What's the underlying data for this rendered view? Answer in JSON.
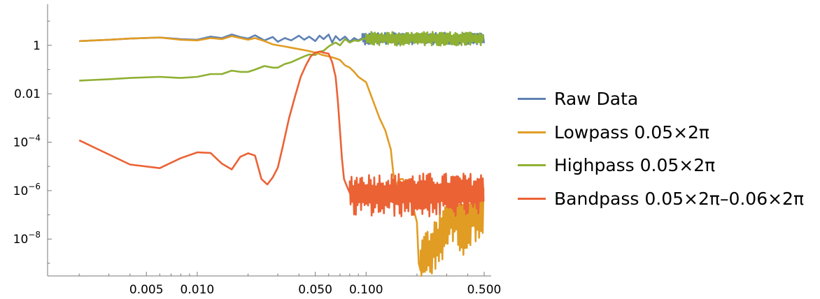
{
  "chart_data": {
    "type": "line",
    "title": "",
    "xlabel": "",
    "ylabel": "",
    "x_scale": "log",
    "y_scale": "log",
    "xlim": [
      0.0013,
      0.55
    ],
    "ylim": [
      3e-10,
      50
    ],
    "x_ticks": [
      0.005,
      0.01,
      0.05,
      0.1,
      0.5
    ],
    "x_tick_labels": [
      "0.005",
      "0.010",
      "0.050",
      "0.100",
      "0.500"
    ],
    "y_ticks": [
      1,
      0.01,
      0.0001,
      1e-06,
      1e-08
    ],
    "y_tick_labels": [
      {
        "base": "1",
        "exp": ""
      },
      {
        "base": "0.01",
        "exp": ""
      },
      {
        "base": "10",
        "exp": "−4"
      },
      {
        "base": "10",
        "exp": "−6"
      },
      {
        "base": "10",
        "exp": "−8"
      }
    ],
    "legend_position": "right",
    "series": [
      {
        "name": "Raw Data",
        "color": "#5e81b5",
        "noisy_tail": true,
        "noise_start": 0.095,
        "noise_amp": 0.3,
        "points": [
          [
            0.002,
            1.5
          ],
          [
            0.003,
            1.7
          ],
          [
            0.004,
            1.9
          ],
          [
            0.006,
            2.1
          ],
          [
            0.008,
            1.8
          ],
          [
            0.01,
            1.7
          ],
          [
            0.012,
            2.3
          ],
          [
            0.014,
            2.0
          ],
          [
            0.016,
            2.8
          ],
          [
            0.018,
            2.2
          ],
          [
            0.02,
            1.9
          ],
          [
            0.022,
            2.6
          ],
          [
            0.025,
            1.6
          ],
          [
            0.028,
            2.2
          ],
          [
            0.03,
            1.4
          ],
          [
            0.033,
            2.0
          ],
          [
            0.036,
            1.6
          ],
          [
            0.04,
            2.5
          ],
          [
            0.043,
            1.7
          ],
          [
            0.046,
            2.3
          ],
          [
            0.05,
            1.5
          ],
          [
            0.053,
            2.5
          ],
          [
            0.056,
            1.8
          ],
          [
            0.06,
            2.8
          ],
          [
            0.063,
            1.3
          ],
          [
            0.066,
            2.4
          ],
          [
            0.07,
            1.6
          ],
          [
            0.075,
            2.3
          ],
          [
            0.08,
            1.4
          ],
          [
            0.085,
            2.0
          ],
          [
            0.09,
            1.6
          ],
          [
            0.095,
            2.0
          ]
        ]
      },
      {
        "name": "Lowpass 0.05×2π",
        "color": "#e19c24",
        "noisy_tail": true,
        "noise_start": 0.21,
        "noise_amp": 1.3,
        "points": [
          [
            0.002,
            1.5
          ],
          [
            0.003,
            1.7
          ],
          [
            0.004,
            1.9
          ],
          [
            0.006,
            2.1
          ],
          [
            0.008,
            1.7
          ],
          [
            0.01,
            1.6
          ],
          [
            0.012,
            2.0
          ],
          [
            0.014,
            1.8
          ],
          [
            0.016,
            2.4
          ],
          [
            0.018,
            2.0
          ],
          [
            0.02,
            1.7
          ],
          [
            0.022,
            2.0
          ],
          [
            0.025,
            1.5
          ],
          [
            0.028,
            1.1
          ],
          [
            0.03,
            1.0
          ],
          [
            0.033,
            0.9
          ],
          [
            0.036,
            0.8
          ],
          [
            0.04,
            0.7
          ],
          [
            0.045,
            0.6
          ],
          [
            0.05,
            0.5
          ],
          [
            0.055,
            0.4
          ],
          [
            0.06,
            0.35
          ],
          [
            0.065,
            0.3
          ],
          [
            0.07,
            0.25
          ],
          [
            0.075,
            0.15
          ],
          [
            0.08,
            0.12
          ],
          [
            0.085,
            0.08
          ],
          [
            0.09,
            0.05
          ],
          [
            0.1,
            0.03
          ],
          [
            0.11,
            0.005
          ],
          [
            0.12,
            0.001
          ],
          [
            0.13,
            0.0003
          ],
          [
            0.14,
            5e-05
          ],
          [
            0.145,
            5e-06
          ],
          [
            0.15,
            1.5e-06
          ],
          [
            0.155,
            2.5e-06
          ],
          [
            0.16,
            3e-06
          ],
          [
            0.165,
            3e-06
          ],
          [
            0.17,
            2e-06
          ],
          [
            0.18,
            5e-07
          ],
          [
            0.19,
            2e-07
          ],
          [
            0.2,
            5e-08
          ],
          [
            0.205,
            1e-09
          ],
          [
            0.21,
            5e-10
          ],
          [
            0.22,
            5e-09
          ],
          [
            0.24,
            3e-09
          ],
          [
            0.27,
            1e-08
          ],
          [
            0.3,
            5e-08
          ],
          [
            0.33,
            1e-07
          ],
          [
            0.38,
            3e-08
          ],
          [
            0.43,
            1e-07
          ],
          [
            0.5,
            2e-07
          ]
        ]
      },
      {
        "name": "Highpass 0.05×2π",
        "color": "#8fb032",
        "noisy_tail": true,
        "noise_start": 0.1,
        "noise_amp": 0.35,
        "points": [
          [
            0.002,
            0.035
          ],
          [
            0.003,
            0.04
          ],
          [
            0.004,
            0.045
          ],
          [
            0.006,
            0.05
          ],
          [
            0.008,
            0.045
          ],
          [
            0.01,
            0.05
          ],
          [
            0.012,
            0.065
          ],
          [
            0.014,
            0.065
          ],
          [
            0.016,
            0.09
          ],
          [
            0.018,
            0.08
          ],
          [
            0.02,
            0.08
          ],
          [
            0.022,
            0.1
          ],
          [
            0.025,
            0.14
          ],
          [
            0.028,
            0.12
          ],
          [
            0.03,
            0.12
          ],
          [
            0.033,
            0.17
          ],
          [
            0.036,
            0.2
          ],
          [
            0.04,
            0.28
          ],
          [
            0.043,
            0.35
          ],
          [
            0.046,
            0.42
          ],
          [
            0.05,
            0.4
          ],
          [
            0.053,
            0.55
          ],
          [
            0.056,
            0.6
          ],
          [
            0.06,
            0.9
          ],
          [
            0.063,
            1.1
          ],
          [
            0.066,
            1.3
          ],
          [
            0.07,
            1.0
          ],
          [
            0.075,
            1.8
          ],
          [
            0.08,
            1.3
          ],
          [
            0.085,
            1.6
          ],
          [
            0.09,
            1.5
          ],
          [
            0.095,
            1.8
          ],
          [
            0.1,
            2.0
          ]
        ]
      },
      {
        "name": "Bandpass 0.05×2π–0.06×2π",
        "color": "#eb6235",
        "noisy_tail": true,
        "noise_start": 0.08,
        "noise_amp": 1.1,
        "points": [
          [
            0.002,
            0.00012
          ],
          [
            0.004,
            1.2e-05
          ],
          [
            0.006,
            8.5e-06
          ],
          [
            0.008,
            2.2e-05
          ],
          [
            0.01,
            3.8e-05
          ],
          [
            0.012,
            3.6e-05
          ],
          [
            0.014,
            1.3e-05
          ],
          [
            0.016,
            7.5e-06
          ],
          [
            0.018,
            2.5e-05
          ],
          [
            0.02,
            3.5e-05
          ],
          [
            0.022,
            2.8e-05
          ],
          [
            0.024,
            3e-06
          ],
          [
            0.026,
            1.8e-06
          ],
          [
            0.028,
            3.5e-06
          ],
          [
            0.03,
            9e-06
          ],
          [
            0.032,
            6e-05
          ],
          [
            0.035,
            0.001
          ],
          [
            0.038,
            0.008
          ],
          [
            0.041,
            0.05
          ],
          [
            0.044,
            0.15
          ],
          [
            0.047,
            0.35
          ],
          [
            0.05,
            0.5
          ],
          [
            0.053,
            0.55
          ],
          [
            0.056,
            0.5
          ],
          [
            0.06,
            0.45
          ],
          [
            0.063,
            0.2
          ],
          [
            0.066,
            0.05
          ],
          [
            0.068,
            0.005
          ],
          [
            0.07,
            0.0003
          ],
          [
            0.072,
            2e-05
          ],
          [
            0.074,
            3e-06
          ],
          [
            0.077,
            1.5e-06
          ],
          [
            0.08,
            8e-07
          ]
        ]
      }
    ]
  }
}
